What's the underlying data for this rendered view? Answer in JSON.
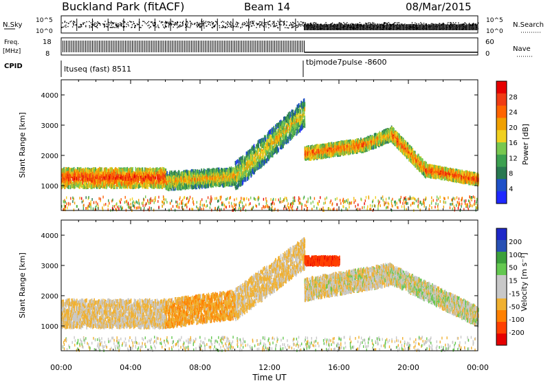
{
  "header": {
    "station": "Buckland Park (fitACF)",
    "beam": "Beam 14",
    "date": "08/Mar/2015"
  },
  "noise_panel": {
    "left_label": "N.Sky",
    "right_label": "N.Search",
    "left_ticks": [
      "10^5",
      "10^0"
    ],
    "right_ticks": [
      "10^5",
      "10^0"
    ]
  },
  "freq_panel": {
    "left_label_1": "Freq.",
    "left_label_2": "[MHz]",
    "right_label": "Nave",
    "left_ticks": [
      "18",
      "8"
    ],
    "right_ticks": [
      "60",
      "0"
    ]
  },
  "cpid_panel": {
    "label": "CPID",
    "modes": [
      "ltuseq (fast) 8511",
      "tbjmode7pulse -8600"
    ]
  },
  "time_axis": {
    "label": "Time UT",
    "ticks": [
      "00:00",
      "04:00",
      "08:00",
      "12:00",
      "16:00",
      "20:00",
      "00:00"
    ]
  },
  "power_panel": {
    "ylabel": "Slant Range [km]",
    "yticks": [
      "4000",
      "3000",
      "2000",
      "1000"
    ],
    "colorbar_label": "Power [dB]",
    "colorbar_ticks": [
      "28",
      "24",
      "20",
      "16",
      "12",
      "8",
      "4"
    ]
  },
  "velocity_panel": {
    "ylabel": "Slant Range [km]",
    "yticks": [
      "4000",
      "3000",
      "2000",
      "1000"
    ],
    "colorbar_label": "Velocity [m s⁻¹]",
    "colorbar_ticks": [
      "200",
      "100",
      "50",
      "15",
      "-15",
      "-50",
      "-100",
      "-200"
    ]
  },
  "colors": {
    "power_scale": [
      "#1e28ff",
      "#1e50c8",
      "#287850",
      "#3ca050",
      "#78c850",
      "#f0d020",
      "#f0a000",
      "#ff6400",
      "#f03c14",
      "#e60000"
    ],
    "velocity_scale": [
      "#e60000",
      "#ff4000",
      "#ff8000",
      "#f0b030",
      "#c8c8c8",
      "#c8c8c8",
      "#64c850",
      "#3ca03c",
      "#2850b4",
      "#1e28c8"
    ]
  },
  "chart_data": [
    {
      "type": "heatmap",
      "title": "Power [dB]",
      "xlabel": "Time UT",
      "ylabel": "Slant Range [km]",
      "xlim": [
        "00:00",
        "24:00"
      ],
      "ylim": [
        180,
        4500
      ],
      "zlim": [
        0,
        30
      ],
      "echo_bands": [
        {
          "start_h": 0.0,
          "end_h": 6.0,
          "center_km": [
            1250,
            1250
          ],
          "width_km": 600,
          "power_db": 26
        },
        {
          "start_h": 6.0,
          "end_h": 10.0,
          "center_km": [
            1150,
            1300
          ],
          "width_km": 550,
          "power_db": 20
        },
        {
          "start_h": 10.0,
          "end_h": 14.0,
          "center_km": [
            1300,
            3400
          ],
          "width_km": 900,
          "power_db": 18
        },
        {
          "start_h": 14.0,
          "end_h": 17.5,
          "center_km": [
            2050,
            2350
          ],
          "width_km": 400,
          "power_db": 24
        },
        {
          "start_h": 17.5,
          "end_h": 19.0,
          "center_km": [
            2350,
            2700
          ],
          "width_km": 400,
          "power_db": 22
        },
        {
          "start_h": 19.0,
          "end_h": 21.0,
          "center_km": [
            2700,
            1500
          ],
          "width_km": 450,
          "power_db": 24
        },
        {
          "start_h": 21.0,
          "end_h": 24.0,
          "center_km": [
            1500,
            1200
          ],
          "width_km": 350,
          "power_db": 26
        }
      ]
    },
    {
      "type": "heatmap",
      "title": "Velocity [m s⁻¹]",
      "xlabel": "Time UT",
      "ylabel": "Slant Range [km]",
      "xlim": [
        "00:00",
        "24:00"
      ],
      "ylim": [
        180,
        4500
      ],
      "zlim": [
        -200,
        200
      ],
      "echo_bands": [
        {
          "start_h": 0.0,
          "end_h": 6.0,
          "center_km": [
            1400,
            1400
          ],
          "width_km": 900,
          "velocity_ms": -15
        },
        {
          "start_h": 6.0,
          "end_h": 10.0,
          "center_km": [
            1400,
            1700
          ],
          "width_km": 900,
          "velocity_ms": -40
        },
        {
          "start_h": 10.0,
          "end_h": 14.0,
          "center_km": [
            1700,
            3400
          ],
          "width_km": 1000,
          "velocity_ms": -20
        },
        {
          "start_h": 14.0,
          "end_h": 16.0,
          "center_km": [
            3150,
            3150
          ],
          "width_km": 250,
          "velocity_ms": -180
        },
        {
          "start_h": 14.0,
          "end_h": 19.0,
          "center_km": [
            2200,
            2700
          ],
          "width_km": 700,
          "velocity_ms": -10
        },
        {
          "start_h": 19.0,
          "end_h": 24.0,
          "center_km": [
            2700,
            1300
          ],
          "width_km": 600,
          "velocity_ms": 0
        }
      ]
    }
  ]
}
